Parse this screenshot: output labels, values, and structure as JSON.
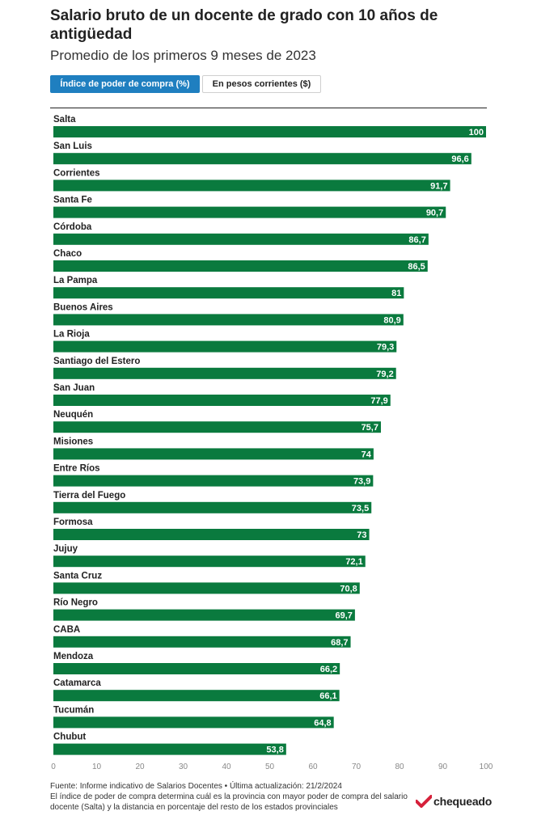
{
  "header": {
    "title": "Salario bruto de un docente de grado con 10 años de antigüedad",
    "subtitle": "Promedio de los primeros 9 meses de 2023"
  },
  "toggles": [
    {
      "label": "Índice de poder de compra (%)",
      "active": true
    },
    {
      "label": "En pesos corrientes ($)",
      "active": false
    }
  ],
  "chart_data": {
    "type": "bar",
    "orientation": "horizontal",
    "categories": [
      "Salta",
      "San Luis",
      "Corrientes",
      "Santa Fe",
      "Córdoba",
      "Chaco",
      "La Pampa",
      "Buenos Aires",
      "La Rioja",
      "Santiago del Estero",
      "San Juan",
      "Neuquén",
      "Misiones",
      "Entre Ríos",
      "Tierra del Fuego",
      "Formosa",
      "Jujuy",
      "Santa Cruz",
      "Río Negro",
      "CABA",
      "Mendoza",
      "Catamarca",
      "Tucumán",
      "Chubut"
    ],
    "values": [
      100,
      96.6,
      91.7,
      90.7,
      86.7,
      86.5,
      81,
      80.9,
      79.3,
      79.2,
      77.9,
      75.7,
      74,
      73.9,
      73.5,
      73,
      72.1,
      70.8,
      69.7,
      68.7,
      66.2,
      66.1,
      64.8,
      53.8
    ],
    "value_labels": [
      "100",
      "96,6",
      "91,7",
      "90,7",
      "86,7",
      "86,5",
      "81",
      "80,9",
      "79,3",
      "79,2",
      "77,9",
      "75,7",
      "74",
      "73,9",
      "73,5",
      "73",
      "72,1",
      "70,8",
      "69,7",
      "68,7",
      "66,2",
      "66,1",
      "64,8",
      "53,8"
    ],
    "xlim": [
      0,
      100
    ],
    "xticks": [
      "0",
      "10",
      "20",
      "30",
      "40",
      "50",
      "60",
      "70",
      "80",
      "90",
      "100"
    ],
    "bar_color": "#0a7a3e",
    "grid": false
  },
  "footer": {
    "source": "Fuente: Informe indicativo de Salarios Docentes • Última actualización: 21/2/2024",
    "note": "El índice de poder de compra determina cuál es la provincia con mayor poder de compra del salario docente (Salta) y la distancia en porcentaje del resto de los estados provinciales"
  },
  "logo": {
    "text": "chequeado",
    "color": "#d6213b"
  }
}
